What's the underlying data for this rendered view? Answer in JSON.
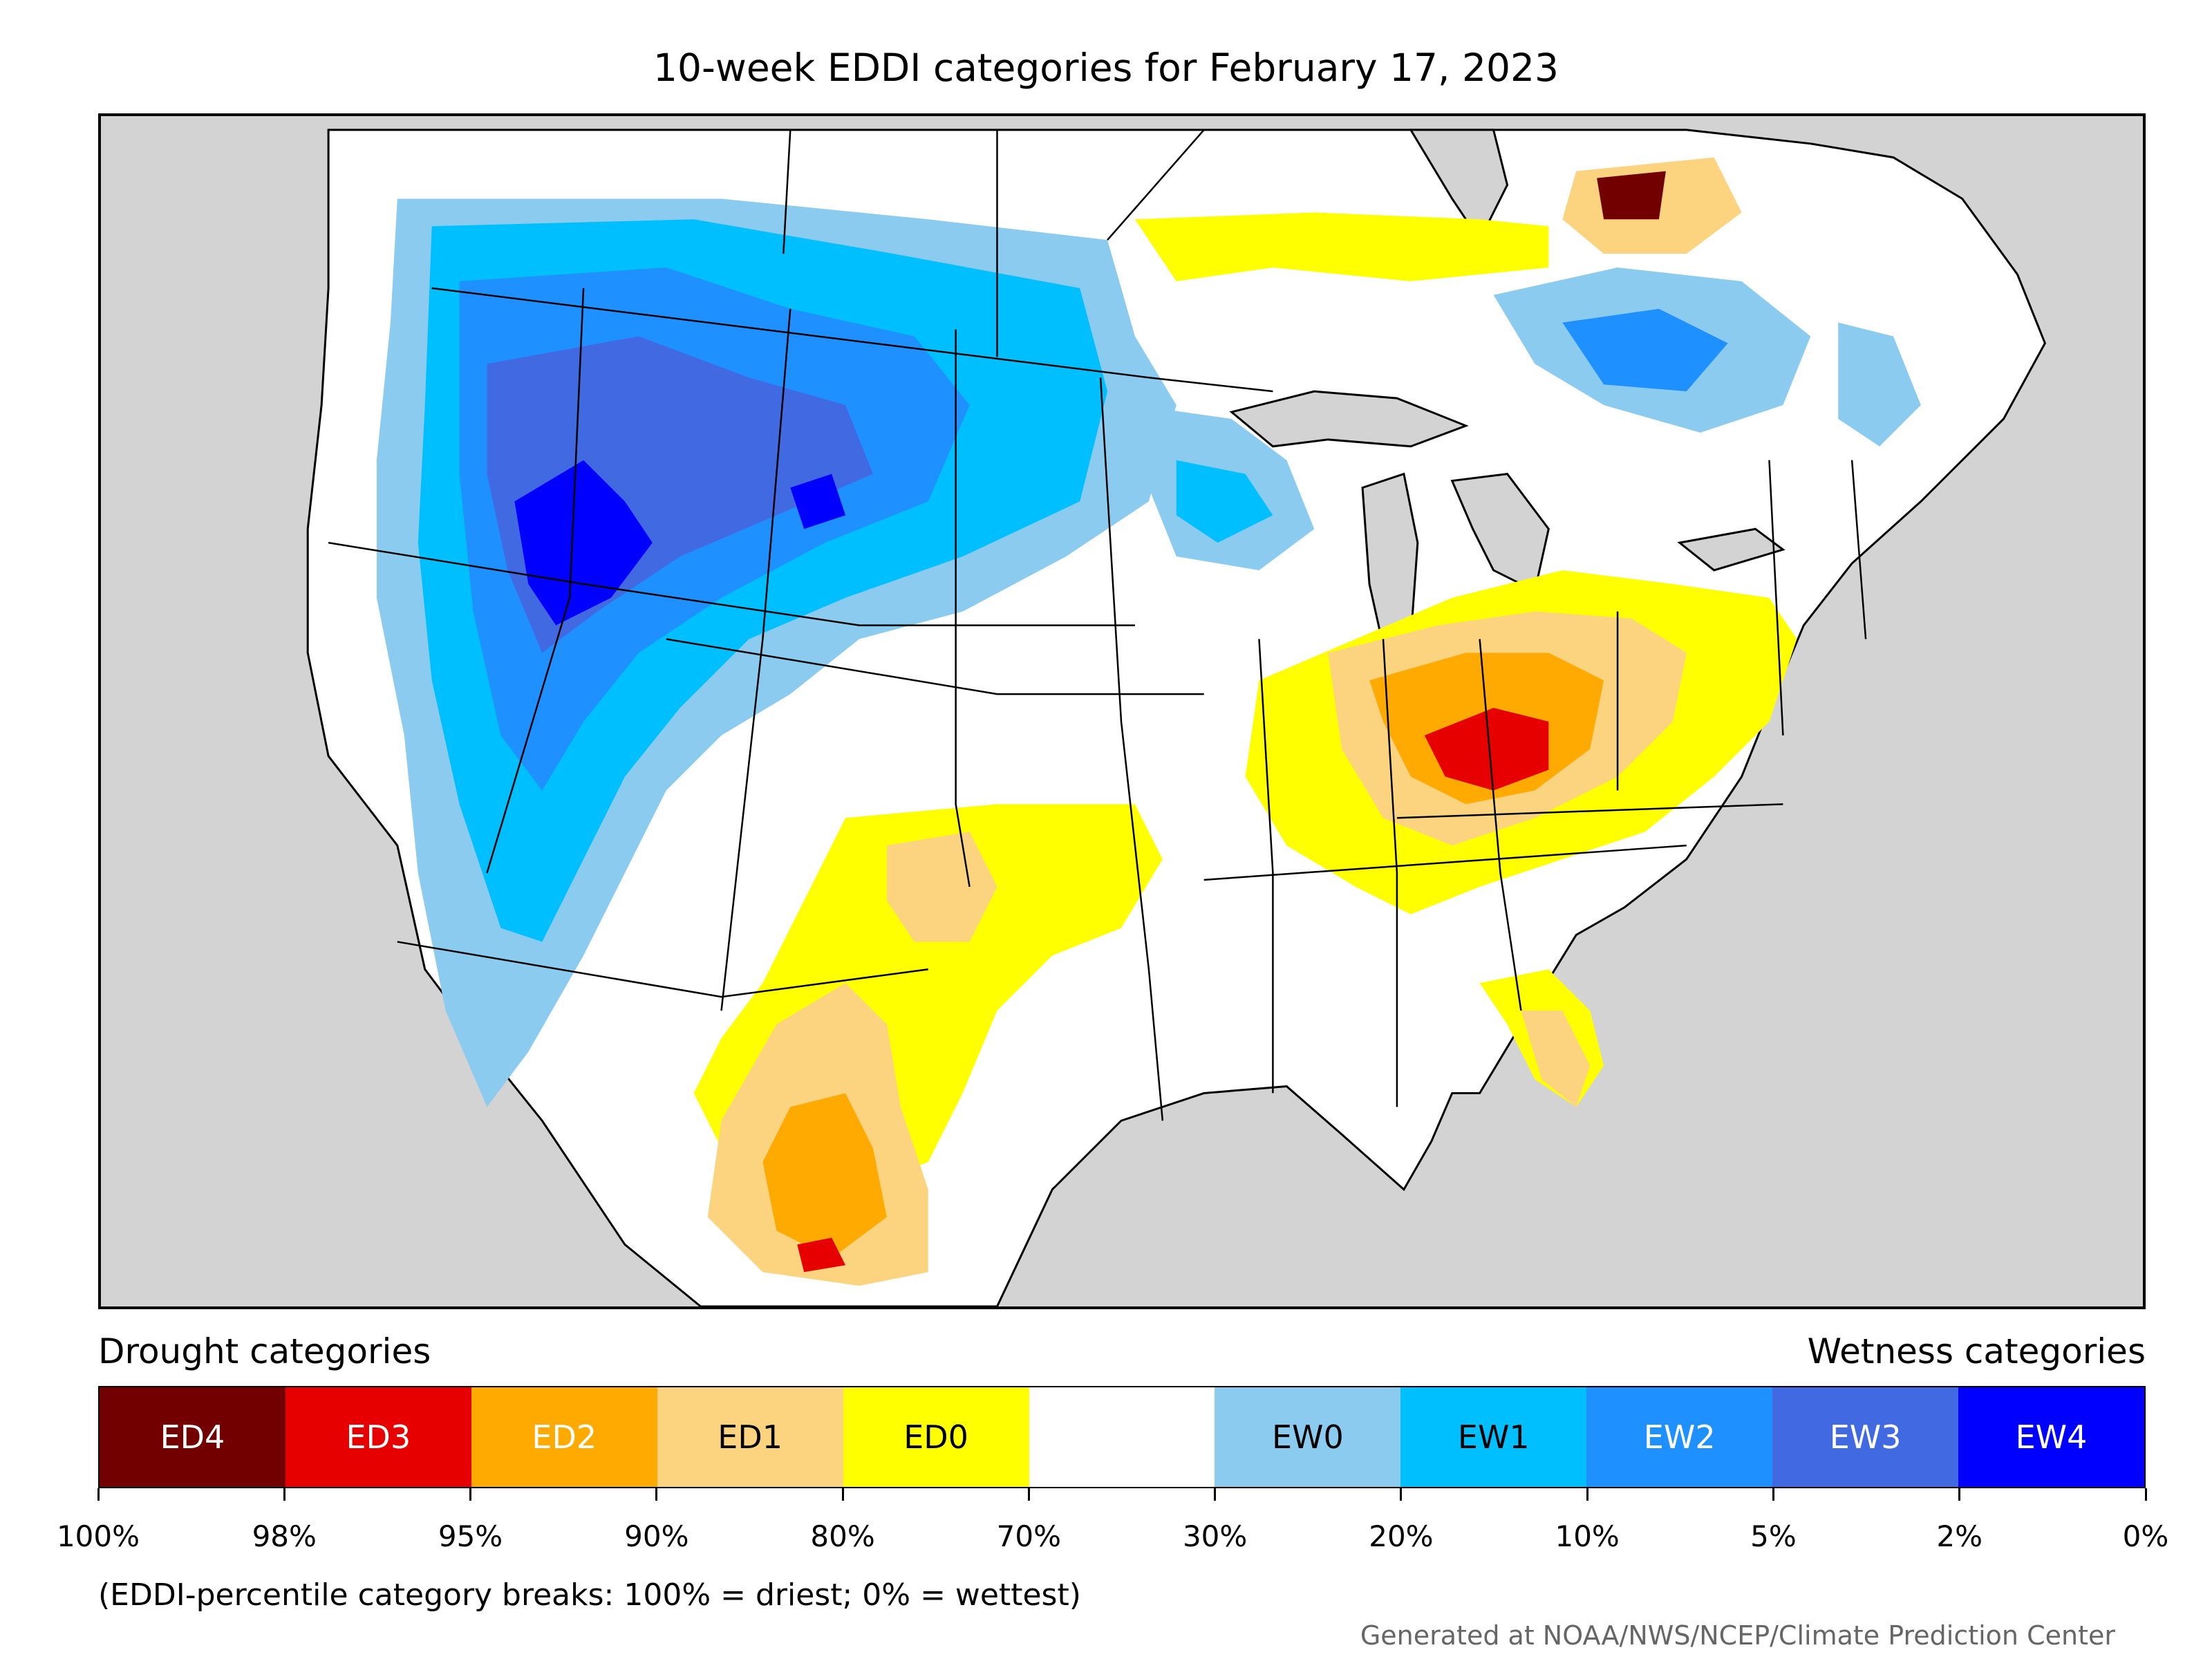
{
  "title": "10-week EDDI categories for February 17, 2023",
  "legend": {
    "drought_heading": "Drought categories",
    "wetness_heading": "Wetness categories",
    "categories": [
      {
        "label": "ED4",
        "color": "#730000",
        "text_color": "#ffffff"
      },
      {
        "label": "ED3",
        "color": "#e60000",
        "text_color": "#ffffff"
      },
      {
        "label": "ED2",
        "color": "#ffaa00",
        "text_color": "#ffffff"
      },
      {
        "label": "ED1",
        "color": "#fcd37f",
        "text_color": "#000000"
      },
      {
        "label": "ED0",
        "color": "#ffff00",
        "text_color": "#000000"
      },
      {
        "label": "",
        "color": "#ffffff",
        "text_color": "#000000"
      },
      {
        "label": "EW0",
        "color": "#8ccbf0",
        "text_color": "#000000"
      },
      {
        "label": "EW1",
        "color": "#00bfff",
        "text_color": "#000000"
      },
      {
        "label": "EW2",
        "color": "#1e90ff",
        "text_color": "#ffffff"
      },
      {
        "label": "EW3",
        "color": "#4169e1",
        "text_color": "#ffffff"
      },
      {
        "label": "EW4",
        "color": "#0000ff",
        "text_color": "#ffffff"
      }
    ],
    "tick_labels": [
      "100%",
      "98%",
      "95%",
      "90%",
      "80%",
      "70%",
      "30%",
      "20%",
      "10%",
      "5%",
      "2%",
      "0%"
    ]
  },
  "note": "(EDDI-percentile category breaks: 100% = driest; 0% = wettest)",
  "credit": "Generated at NOAA/NWS/NCEP/Climate Prediction Center",
  "colors": {
    "ocean": "#d3d3d3",
    "neutral": "#ffffff",
    "boundary": "#000000"
  }
}
